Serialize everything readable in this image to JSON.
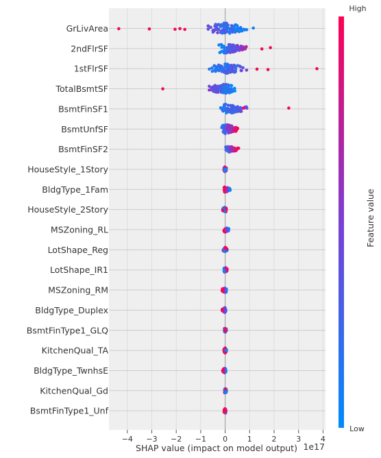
{
  "chart_data": {
    "type": "scatter",
    "subtype": "shap-beeswarm",
    "xlabel": "SHAP value (impact on model output)",
    "x_offset_text": "1e17",
    "x_ticks": [
      "−4",
      "−3",
      "−2",
      "−1",
      "0",
      "1",
      "2",
      "3",
      "4"
    ],
    "x_tick_values": [
      -4,
      -3,
      -2,
      -1,
      0,
      1,
      2,
      3,
      4
    ],
    "xlim": [
      -4.8,
      4.2
    ],
    "x_unit_multiplier": 1e+17,
    "grid": true,
    "colorbar": {
      "label": "Feature value",
      "high_label": "High",
      "low_label": "Low",
      "low_color": "#008bfb",
      "high_color": "#ff0052"
    },
    "features": [
      {
        "name": "GrLivArea",
        "min": -4.35,
        "max": 1.15,
        "spread": "wide",
        "low_side": "right",
        "outliers_x": [
          -4.35,
          -3.1,
          -2.05,
          -1.85,
          -1.65,
          1.15
        ]
      },
      {
        "name": "2ndFlrSF",
        "min": -0.35,
        "max": 1.85,
        "spread": "medium",
        "low_side": "left",
        "outliers_x": [
          1.5,
          1.85
        ]
      },
      {
        "name": "1stFlrSF",
        "min": -0.85,
        "max": 3.75,
        "spread": "medium",
        "low_side": "left",
        "outliers_x": [
          1.3,
          1.75,
          3.75
        ]
      },
      {
        "name": "TotalBsmtSF",
        "min": -2.55,
        "max": 0.55,
        "spread": "medium",
        "low_side": "right",
        "outliers_x": [
          -2.55
        ]
      },
      {
        "name": "BsmtFinSF1",
        "min": -0.35,
        "max": 2.6,
        "spread": "medium",
        "low_side": "left",
        "outliers_x": [
          0.75,
          2.6
        ]
      },
      {
        "name": "BsmtUnfSF",
        "min": -0.3,
        "max": 0.65,
        "spread": "medium",
        "low_side": "left",
        "outliers_x": []
      },
      {
        "name": "BsmtFinSF2",
        "min": -0.05,
        "max": 0.55,
        "spread": "narrow",
        "low_side": "left",
        "outliers_x": [
          0.55
        ]
      },
      {
        "name": "HouseStyle_1Story",
        "min": -0.05,
        "max": 0.05,
        "spread": "thin",
        "low_side": "center",
        "outliers_x": []
      },
      {
        "name": "BldgType_1Fam",
        "min": -0.05,
        "max": 0.2,
        "spread": "thin",
        "low_side": "right",
        "outliers_x": [
          0.2
        ]
      },
      {
        "name": "HouseStyle_2Story",
        "min": -0.1,
        "max": 0.05,
        "spread": "thin",
        "low_side": "center",
        "outliers_x": []
      },
      {
        "name": "MSZoning_RL",
        "min": -0.05,
        "max": 0.15,
        "spread": "thin",
        "low_side": "right",
        "outliers_x": []
      },
      {
        "name": "LotShape_Reg",
        "min": -0.08,
        "max": 0.08,
        "spread": "thin",
        "low_side": "center",
        "outliers_x": []
      },
      {
        "name": "LotShape_IR1",
        "min": -0.05,
        "max": 0.08,
        "spread": "thin",
        "low_side": "left",
        "outliers_x": []
      },
      {
        "name": "MSZoning_RM",
        "min": -0.12,
        "max": 0.05,
        "spread": "thin",
        "low_side": "right",
        "outliers_x": [
          -0.12
        ]
      },
      {
        "name": "BldgType_Duplex",
        "min": -0.12,
        "max": 0.03,
        "spread": "thin",
        "low_side": "right",
        "outliers_x": [
          -0.12
        ]
      },
      {
        "name": "BsmtFinType1_GLQ",
        "min": -0.03,
        "max": 0.05,
        "spread": "thin",
        "low_side": "center",
        "outliers_x": []
      },
      {
        "name": "KitchenQual_TA",
        "min": -0.05,
        "max": 0.05,
        "spread": "thin",
        "low_side": "center",
        "outliers_x": []
      },
      {
        "name": "BldgType_TwnhsE",
        "min": -0.1,
        "max": 0.03,
        "spread": "thin",
        "low_side": "right",
        "outliers_x": [
          -0.1
        ]
      },
      {
        "name": "KitchenQual_Gd",
        "min": -0.03,
        "max": 0.05,
        "spread": "thin",
        "low_side": "center",
        "outliers_x": []
      },
      {
        "name": "BsmtFinType1_Unf",
        "min": -0.05,
        "max": 0.03,
        "spread": "thin",
        "low_side": "center",
        "outliers_x": []
      }
    ]
  }
}
